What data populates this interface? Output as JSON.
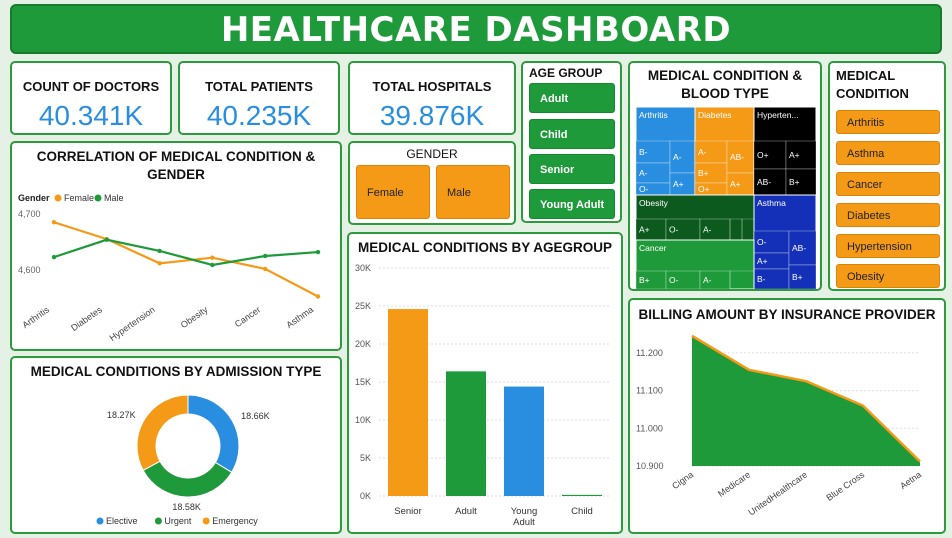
{
  "title": "HEALTHCARE DASHBOARD",
  "kpis": [
    {
      "label": "COUNT OF DOCTORS",
      "value": "40.341K"
    },
    {
      "label": "TOTAL PATIENTS",
      "value": "40.235K"
    },
    {
      "label": "TOTAL HOSPITALS",
      "value": "39.876K"
    }
  ],
  "age_group": {
    "title": "AGE GROUP",
    "items": [
      "Adult",
      "Child",
      "Senior",
      "Young Adult"
    ]
  },
  "gender": {
    "title": "GENDER",
    "items": [
      "Female",
      "Male"
    ]
  },
  "medical_condition_slicer": {
    "title": "MEDICAL CONDITION",
    "items": [
      "Arthritis",
      "Asthma",
      "Cancer",
      "Diabetes",
      "Hypertension",
      "Obesity"
    ]
  },
  "colors": {
    "green": "#1f9a3a",
    "orange": "#f59a17",
    "blue": "#2a8ee0",
    "black": "#000000",
    "dark_green": "#0d5a1f",
    "navy": "#1530b8"
  },
  "chart_data": [
    {
      "id": "gender_line",
      "type": "line",
      "title": "CORRELATION OF MEDICAL CONDITION & GENDER",
      "legend_title": "Gender",
      "categories": [
        "Arthritis",
        "Diabetes",
        "Hypertension",
        "Obesity",
        "Cancer",
        "Asthma"
      ],
      "series": [
        {
          "name": "Female",
          "values": [
            4685,
            4655,
            4612,
            4622,
            4602,
            4553
          ],
          "color": "#f59a17"
        },
        {
          "name": "Male",
          "values": [
            4623,
            4654,
            4634,
            4609,
            4625,
            4632
          ],
          "color": "#1f9a3a"
        }
      ],
      "yticks": [
        "4,600",
        "4,700"
      ],
      "ylim": [
        4545,
        4705
      ]
    },
    {
      "id": "admission_donut",
      "type": "pie",
      "title": "MEDICAL CONDITIONS BY ADMISSION TYPE",
      "categories": [
        "Elective",
        "Urgent",
        "Emergency"
      ],
      "values": [
        18.66,
        18.58,
        18.27
      ],
      "labels": [
        "18.66K",
        "18.58K",
        "18.27K"
      ],
      "colors": [
        "#2a8ee0",
        "#1f9a3a",
        "#f59a17"
      ]
    },
    {
      "id": "agegroup_bar",
      "type": "bar",
      "title": "MEDICAL CONDITIONS BY AGEGROUP",
      "categories": [
        "Senior",
        "Adult",
        "Young Adult",
        "Child"
      ],
      "values": [
        24600,
        16400,
        14400,
        150
      ],
      "colors": [
        "#f59a17",
        "#1f9a3a",
        "#2a8ee0",
        "#1f9a3a"
      ],
      "yticks": [
        "0K",
        "5K",
        "10K",
        "15K",
        "20K",
        "25K",
        "30K"
      ],
      "ylim": [
        0,
        30000
      ]
    },
    {
      "id": "blood_treemap",
      "type": "heatmap",
      "title": "MEDICAL CONDITION & BLOOD TYPE",
      "groups": [
        {
          "name": "Arthritis",
          "color": "#2a8ee0",
          "cells": [
            "B-",
            "A-",
            "O-",
            "A-",
            "A+"
          ]
        },
        {
          "name": "Diabetes",
          "color": "#f59a17",
          "cells": [
            "A-",
            "B+",
            "O+",
            "AB-",
            "A+"
          ]
        },
        {
          "name": "Hyperten...",
          "color": "#000000",
          "cells": [
            "O+",
            "AB-",
            "A+",
            "B+"
          ]
        },
        {
          "name": "Obesity",
          "color": "#0d5a1f",
          "cells": [
            "A+",
            "O-",
            "A-"
          ]
        },
        {
          "name": "Asthma",
          "color": "#1530b8",
          "cells": [
            "O-",
            "A+",
            "B-",
            "AB-",
            "B+"
          ]
        },
        {
          "name": "Cancer",
          "color": "#1f9a3a",
          "cells": [
            "B+",
            "O-",
            "A-"
          ]
        }
      ]
    },
    {
      "id": "billing_area",
      "type": "area",
      "title": "BILLING AMOUNT BY INSURANCE PROVIDER",
      "categories": [
        "Cigna",
        "Medicare",
        "UnitedHealthcare",
        "Blue Cross",
        "Aetna"
      ],
      "values": [
        11.245,
        11.155,
        11.125,
        11.06,
        10.912
      ],
      "yticks": [
        "10.900",
        "11.000",
        "11.100",
        "11.200"
      ],
      "ylim": [
        10.9,
        11.25
      ]
    }
  ]
}
